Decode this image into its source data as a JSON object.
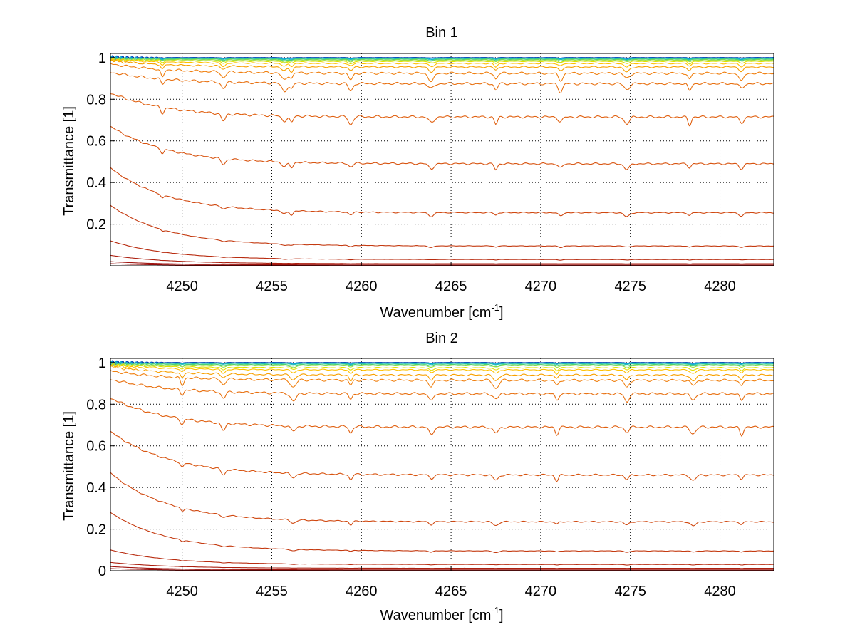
{
  "chart_data": [
    {
      "type": "line",
      "title": "Bin 1",
      "xlabel": "Wavenumber [cm",
      "xlabel_sup": "-1",
      "xlabel_tail": "]",
      "ylabel": "Transmittance [1]",
      "xlim": [
        4246,
        4283
      ],
      "ylim": [
        0,
        1.02
      ],
      "xticks": [
        4250,
        4255,
        4260,
        4265,
        4270,
        4275,
        4280
      ],
      "yticks": [
        0.2,
        0.4,
        0.6,
        0.8,
        1
      ],
      "ytick_labels": [
        "0.2",
        "0.4",
        "0.6",
        "0.8",
        "1"
      ],
      "grid": true,
      "legend": "none",
      "absorption_lines": [
        4248.9,
        4252.3,
        4255.7,
        4256.1,
        4259.4,
        4263.9,
        4267.5,
        4271.1,
        4274.8,
        4278.3,
        4281.2
      ],
      "series": [
        {
          "color": "#00208f",
          "baseline": 1.0,
          "start": 1.0,
          "depth": 0.003
        },
        {
          "color": "#0050c0",
          "baseline": 1.0,
          "start": 1.0,
          "depth": 0.004
        },
        {
          "color": "#00a0e0",
          "baseline": 0.997,
          "start": 0.998,
          "depth": 0.005
        },
        {
          "color": "#20c0b0",
          "baseline": 0.995,
          "start": 0.997,
          "depth": 0.006
        },
        {
          "color": "#50d070",
          "baseline": 0.992,
          "start": 0.995,
          "depth": 0.008
        },
        {
          "color": "#a0e040",
          "baseline": 0.988,
          "start": 0.992,
          "depth": 0.01
        },
        {
          "color": "#e0e000",
          "baseline": 0.982,
          "start": 0.99,
          "depth": 0.012
        },
        {
          "color": "#ffc000",
          "baseline": 0.972,
          "start": 0.99,
          "depth": 0.018
        },
        {
          "color": "#f8a000",
          "baseline": 0.955,
          "start": 0.985,
          "depth": 0.025
        },
        {
          "color": "#f08010",
          "baseline": 0.925,
          "start": 0.97,
          "depth": 0.04
        },
        {
          "color": "#e87010",
          "baseline": 0.875,
          "start": 0.93,
          "depth": 0.04
        },
        {
          "color": "#e06010",
          "baseline": 0.715,
          "start": 0.83,
          "depth": 0.04
        },
        {
          "color": "#d85410",
          "baseline": 0.49,
          "start": 0.67,
          "depth": 0.03
        },
        {
          "color": "#d04810",
          "baseline": 0.255,
          "start": 0.47,
          "depth": 0.02
        },
        {
          "color": "#c43a10",
          "baseline": 0.095,
          "start": 0.29,
          "depth": 0.008
        },
        {
          "color": "#b82c10",
          "baseline": 0.03,
          "start": 0.12,
          "depth": 0.003
        },
        {
          "color": "#ac2010",
          "baseline": 0.01,
          "start": 0.05,
          "depth": 0.001
        },
        {
          "color": "#a01510",
          "baseline": 0.004,
          "start": 0.02,
          "depth": 0.0
        },
        {
          "color": "#900c0c",
          "baseline": 0.001,
          "start": 0.01,
          "depth": 0.0
        }
      ]
    },
    {
      "type": "line",
      "title": "Bin 2",
      "xlabel": "Wavenumber [cm",
      "xlabel_sup": "-1",
      "xlabel_tail": "]",
      "ylabel": "Transmittance [1]",
      "xlim": [
        4246,
        4283
      ],
      "ylim": [
        0,
        1.02
      ],
      "xticks": [
        4250,
        4255,
        4260,
        4265,
        4270,
        4275,
        4280
      ],
      "yticks": [
        0,
        0.2,
        0.4,
        0.6,
        0.8,
        1
      ],
      "ytick_labels": [
        "0",
        "0.2",
        "0.4",
        "0.6",
        "0.8",
        "1"
      ],
      "grid": true,
      "legend": "none",
      "absorption_lines": [
        4250.0,
        4252.3,
        4256.2,
        4259.4,
        4263.9,
        4267.5,
        4270.9,
        4274.8,
        4278.5,
        4281.2
      ],
      "series": [
        {
          "color": "#00208f",
          "baseline": 1.0,
          "start": 1.0,
          "depth": 0.003
        },
        {
          "color": "#0050c0",
          "baseline": 1.0,
          "start": 1.0,
          "depth": 0.004
        },
        {
          "color": "#00a0e0",
          "baseline": 0.997,
          "start": 0.998,
          "depth": 0.005
        },
        {
          "color": "#20c0b0",
          "baseline": 0.995,
          "start": 0.997,
          "depth": 0.006
        },
        {
          "color": "#50d070",
          "baseline": 0.99,
          "start": 0.995,
          "depth": 0.008
        },
        {
          "color": "#a0e040",
          "baseline": 0.985,
          "start": 0.99,
          "depth": 0.01
        },
        {
          "color": "#e0e000",
          "baseline": 0.975,
          "start": 0.99,
          "depth": 0.014
        },
        {
          "color": "#ffc000",
          "baseline": 0.965,
          "start": 0.985,
          "depth": 0.02
        },
        {
          "color": "#f8a000",
          "baseline": 0.94,
          "start": 0.98,
          "depth": 0.03
        },
        {
          "color": "#f08010",
          "baseline": 0.915,
          "start": 0.96,
          "depth": 0.04
        },
        {
          "color": "#e87010",
          "baseline": 0.85,
          "start": 0.92,
          "depth": 0.04
        },
        {
          "color": "#e06010",
          "baseline": 0.69,
          "start": 0.83,
          "depth": 0.04
        },
        {
          "color": "#d85410",
          "baseline": 0.46,
          "start": 0.67,
          "depth": 0.03
        },
        {
          "color": "#d04810",
          "baseline": 0.235,
          "start": 0.47,
          "depth": 0.02
        },
        {
          "color": "#c43a10",
          "baseline": 0.095,
          "start": 0.28,
          "depth": 0.008
        },
        {
          "color": "#b82c10",
          "baseline": 0.03,
          "start": 0.1,
          "depth": 0.003
        },
        {
          "color": "#ac2010",
          "baseline": 0.012,
          "start": 0.04,
          "depth": 0.001
        },
        {
          "color": "#a01510",
          "baseline": 0.004,
          "start": 0.02,
          "depth": 0.0
        },
        {
          "color": "#900c0c",
          "baseline": 0.001,
          "start": 0.01,
          "depth": 0.0
        }
      ]
    }
  ]
}
